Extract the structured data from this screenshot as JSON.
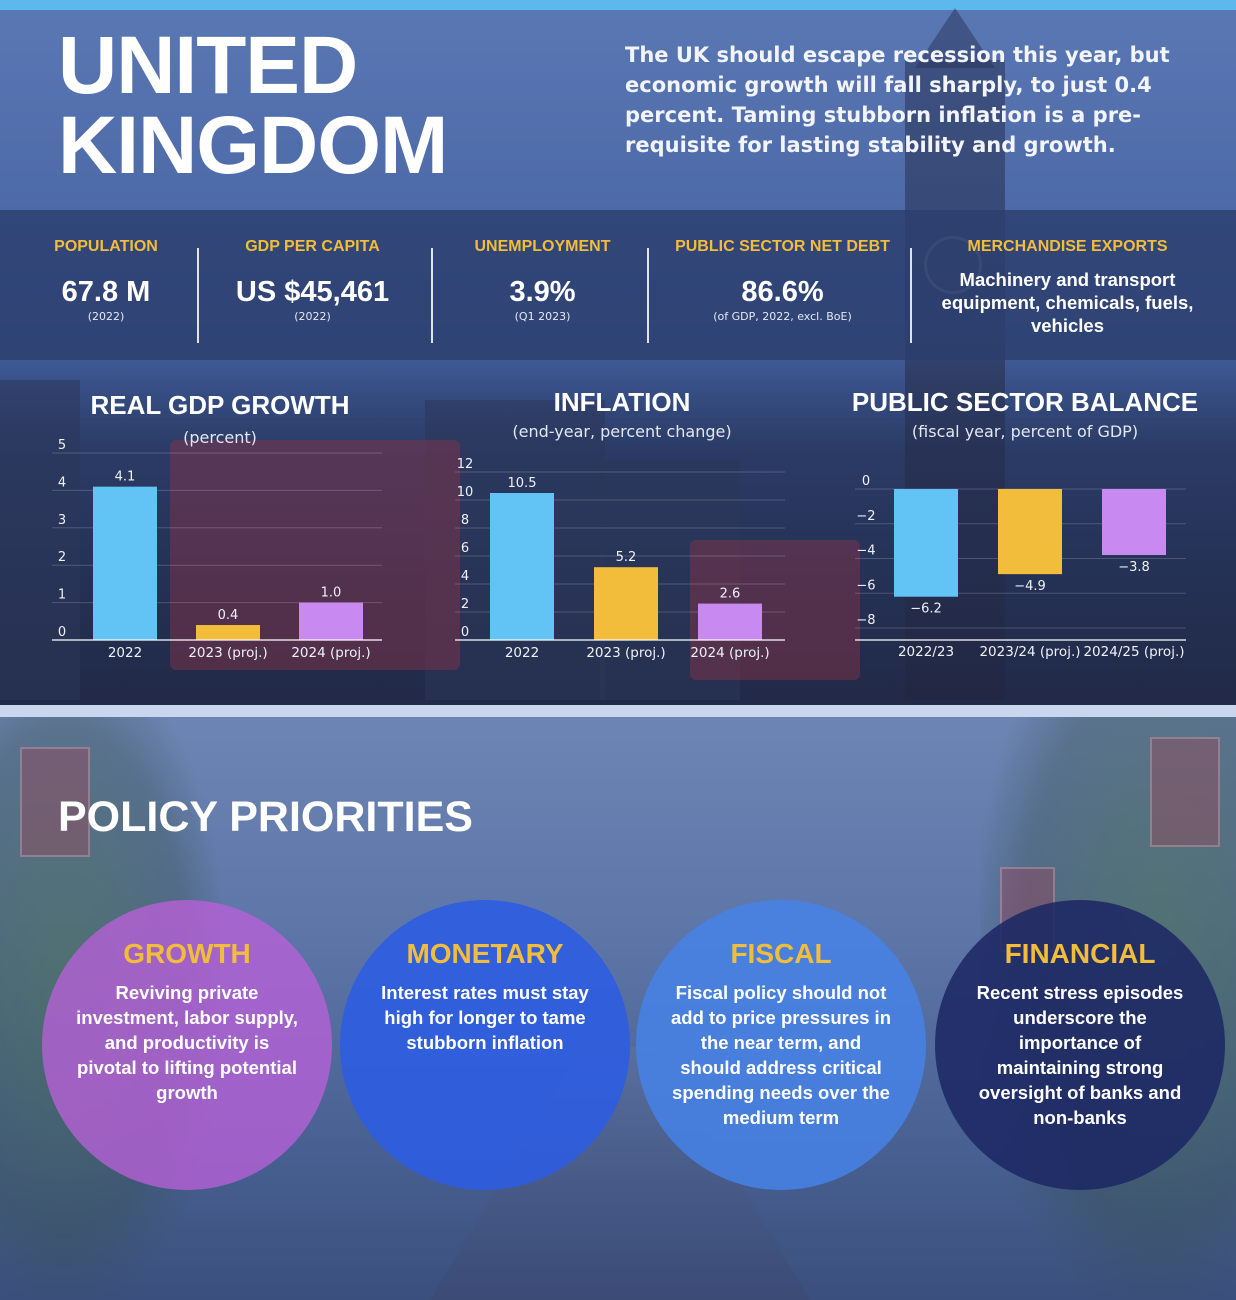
{
  "header": {
    "title_line1": "UNITED",
    "title_line2": "KINGDOM",
    "intro": "The UK should escape recession this year, but economic growth will fall sharply, to just 0.4 percent. Taming stubborn inflation is a pre-requisite for lasting stability and growth."
  },
  "stats": {
    "population": {
      "label": "POPULATION",
      "value": "67.8 M",
      "note": "(2022)"
    },
    "gdp_per_capita": {
      "label": "GDP PER CAPITA",
      "value": "US $45,461",
      "note": "(2022)"
    },
    "unemployment": {
      "label": "UNEMPLOYMENT",
      "value": "3.9%",
      "note": "(Q1 2023)"
    },
    "debt": {
      "label": "PUBLIC SECTOR NET DEBT",
      "value": "86.6%",
      "note": "(of GDP, 2022, excl. BoE)"
    },
    "exports": {
      "label": "MERCHANDISE EXPORTS",
      "text": "Machinery and transport equipment, chemicals, fuels, vehicles"
    }
  },
  "colors": {
    "blue": "#62c3f5",
    "gold": "#f2bd3a",
    "purple": "#c88af0",
    "accent": "#f2bd3a"
  },
  "chart_data": [
    {
      "type": "bar",
      "title": "REAL GDP GROWTH",
      "subtitle": "(percent)",
      "categories": [
        "2022",
        "2023 (proj.)",
        "2024 (proj.)"
      ],
      "values": [
        4.1,
        0.4,
        1.0
      ],
      "value_labels": [
        "4.1",
        "0.4",
        "1.0"
      ],
      "ylim": [
        0,
        5
      ],
      "yticks": [
        0,
        1,
        2,
        3,
        4,
        5
      ]
    },
    {
      "type": "bar",
      "title": "INFLATION",
      "subtitle": "(end-year, percent change)",
      "categories": [
        "2022",
        "2023 (proj.)",
        "2024 (proj.)"
      ],
      "values": [
        10.5,
        5.2,
        2.6
      ],
      "value_labels": [
        "10.5",
        "5.2",
        "2.6"
      ],
      "ylim": [
        0,
        12
      ],
      "yticks": [
        0,
        2,
        4,
        6,
        8,
        10,
        12
      ]
    },
    {
      "type": "bar",
      "title": "PUBLIC SECTOR BALANCE",
      "subtitle": "(fiscal year, percent of GDP)",
      "categories": [
        "2022/23",
        "2023/24 (proj.)",
        "2024/25 (proj.)"
      ],
      "values": [
        -6.2,
        -4.9,
        -3.8
      ],
      "value_labels": [
        "−6.2",
        "−4.9",
        "−3.8"
      ],
      "ylim": [
        -8,
        0
      ],
      "yticks": [
        0,
        -2,
        -4,
        -6,
        -8
      ]
    }
  ],
  "policy": {
    "title": "POLICY PRIORITIES",
    "items": [
      {
        "head": "GROWTH",
        "body": "Reviving private investment, labor supply, and productivity is pivotal to lifting potential growth"
      },
      {
        "head": "MONETARY",
        "body": "Interest rates must stay high for longer to tame stubborn inflation"
      },
      {
        "head": "FISCAL",
        "body": "Fiscal policy should not add to price pressures in the near term, and should address critical spending needs over the medium term"
      },
      {
        "head": "FINANCIAL",
        "body": "Recent stress episodes underscore the importance of maintaining strong oversight of banks and non-banks"
      }
    ]
  }
}
